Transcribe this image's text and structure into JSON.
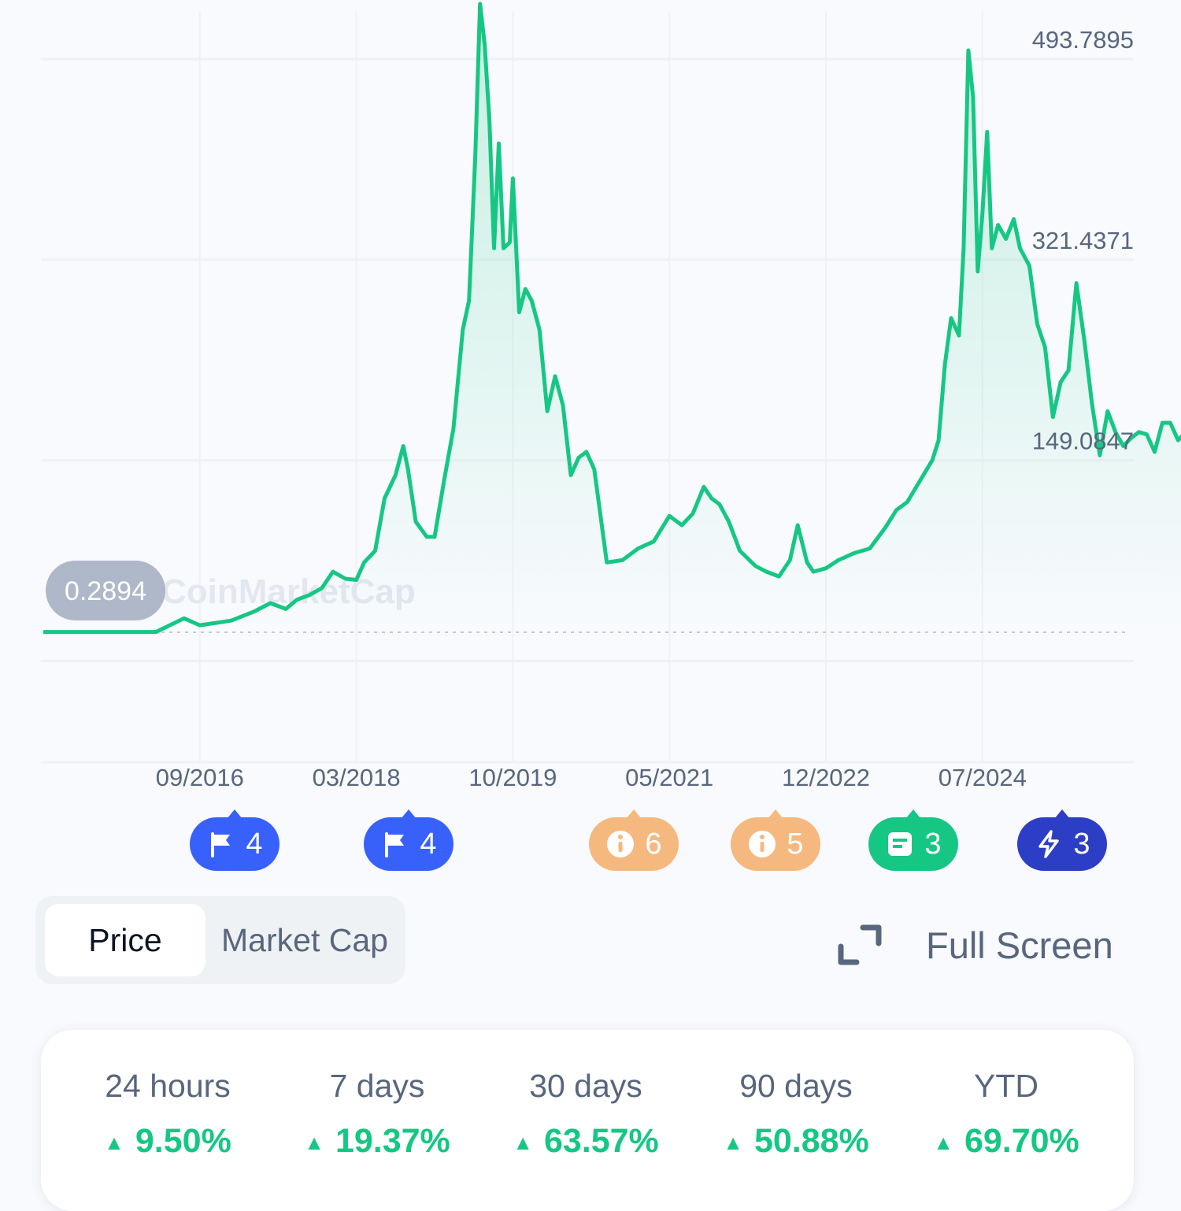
{
  "colors": {
    "line": "#16c784",
    "grid": "#eff2f5",
    "flag": "#3861fb",
    "info": "#f5b97f",
    "news": "#16c784",
    "bolt": "#2c3ec5"
  },
  "chart_data": {
    "type": "area",
    "watermark": "CoinMarketCap",
    "start_value_label": "0.2894",
    "y_labels": [
      "493.7895",
      "321.4371",
      "149.0847"
    ],
    "x_ticks": [
      "09/2016",
      "03/2018",
      "10/2019",
      "05/2021",
      "12/2022",
      "07/2024"
    ],
    "ylim": [
      -23.27,
      612
    ],
    "points": [
      [
        0,
        0.29
      ],
      [
        0.72,
        0.29
      ],
      [
        0.9,
        12
      ],
      [
        1.0,
        6
      ],
      [
        1.2,
        10
      ],
      [
        1.35,
        18
      ],
      [
        1.45,
        25
      ],
      [
        1.55,
        20
      ],
      [
        1.62,
        28
      ],
      [
        1.7,
        32
      ],
      [
        1.78,
        38
      ],
      [
        1.85,
        52
      ],
      [
        1.93,
        46
      ],
      [
        2.0,
        45
      ],
      [
        2.05,
        60
      ],
      [
        2.12,
        70
      ],
      [
        2.18,
        115
      ],
      [
        2.25,
        135
      ],
      [
        2.3,
        160
      ],
      [
        2.33,
        140
      ],
      [
        2.38,
        95
      ],
      [
        2.45,
        82
      ],
      [
        2.5,
        82
      ],
      [
        2.56,
        130
      ],
      [
        2.62,
        175
      ],
      [
        2.68,
        260
      ],
      [
        2.72,
        285
      ],
      [
        2.76,
        410
      ],
      [
        2.79,
        540
      ],
      [
        2.82,
        505
      ],
      [
        2.85,
        440
      ],
      [
        2.88,
        330
      ],
      [
        2.91,
        420
      ],
      [
        2.94,
        330
      ],
      [
        2.98,
        335
      ],
      [
        3.0,
        390
      ],
      [
        3.04,
        275
      ],
      [
        3.08,
        295
      ],
      [
        3.12,
        285
      ],
      [
        3.17,
        260
      ],
      [
        3.22,
        190
      ],
      [
        3.27,
        220
      ],
      [
        3.32,
        195
      ],
      [
        3.37,
        135
      ],
      [
        3.42,
        150
      ],
      [
        3.47,
        155
      ],
      [
        3.52,
        140
      ],
      [
        3.6,
        60
      ],
      [
        3.7,
        62
      ],
      [
        3.8,
        72
      ],
      [
        3.9,
        78
      ],
      [
        4.0,
        100
      ],
      [
        4.08,
        92
      ],
      [
        4.15,
        102
      ],
      [
        4.22,
        125
      ],
      [
        4.27,
        115
      ],
      [
        4.32,
        110
      ],
      [
        4.38,
        95
      ],
      [
        4.45,
        70
      ],
      [
        4.55,
        57
      ],
      [
        4.62,
        52
      ],
      [
        4.7,
        48
      ],
      [
        4.77,
        62
      ],
      [
        4.82,
        92
      ],
      [
        4.88,
        60
      ],
      [
        4.92,
        52
      ],
      [
        5.0,
        55
      ],
      [
        5.08,
        62
      ],
      [
        5.18,
        68
      ],
      [
        5.28,
        72
      ],
      [
        5.38,
        90
      ],
      [
        5.45,
        105
      ],
      [
        5.52,
        112
      ],
      [
        5.6,
        130
      ],
      [
        5.68,
        148
      ],
      [
        5.72,
        165
      ],
      [
        5.76,
        230
      ],
      [
        5.8,
        270
      ],
      [
        5.85,
        255
      ],
      [
        5.88,
        330
      ],
      [
        5.91,
        500
      ],
      [
        5.94,
        460
      ],
      [
        5.97,
        310
      ],
      [
        6.0,
        360
      ],
      [
        6.03,
        430
      ],
      [
        6.06,
        330
      ],
      [
        6.1,
        350
      ],
      [
        6.15,
        338
      ],
      [
        6.2,
        355
      ],
      [
        6.24,
        330
      ],
      [
        6.3,
        315
      ],
      [
        6.35,
        265
      ],
      [
        6.4,
        245
      ],
      [
        6.45,
        185
      ],
      [
        6.5,
        215
      ],
      [
        6.55,
        225
      ],
      [
        6.6,
        300
      ],
      [
        6.65,
        252
      ],
      [
        6.7,
        196
      ],
      [
        6.75,
        152
      ],
      [
        6.8,
        190
      ],
      [
        6.85,
        172
      ],
      [
        6.9,
        160
      ],
      [
        6.95,
        167
      ],
      [
        7.0,
        172
      ],
      [
        7.05,
        170
      ],
      [
        7.1,
        155
      ],
      [
        7.15,
        180
      ],
      [
        7.2,
        180
      ],
      [
        7.25,
        165
      ],
      [
        7.3,
        172
      ],
      [
        7.35,
        160
      ],
      [
        7.4,
        170
      ],
      [
        7.45,
        175
      ],
      [
        7.5,
        165
      ],
      [
        7.55,
        168
      ],
      [
        7.6,
        178
      ],
      [
        7.65,
        180
      ],
      [
        7.7,
        170
      ],
      [
        7.75,
        160
      ],
      [
        7.8,
        152
      ],
      [
        7.85,
        140
      ],
      [
        7.92,
        148
      ],
      [
        8.0,
        172
      ],
      [
        8.05,
        183
      ],
      [
        8.1,
        175
      ],
      [
        8.15,
        172
      ],
      [
        8.2,
        176
      ],
      [
        8.25,
        198
      ],
      [
        8.3,
        210
      ],
      [
        8.35,
        220
      ],
      [
        8.4,
        232
      ],
      [
        8.45,
        225
      ],
      [
        8.5,
        230
      ],
      [
        8.53,
        270
      ],
      [
        8.56,
        310
      ],
      [
        8.58,
        330
      ]
    ]
  },
  "badges": [
    {
      "icon": "flag-icon",
      "count": "4",
      "color": "#3861fb"
    },
    {
      "icon": "flag-icon",
      "count": "4",
      "color": "#3861fb"
    },
    {
      "icon": "info-icon",
      "count": "6",
      "color": "#f5b97f"
    },
    {
      "icon": "info-icon",
      "count": "5",
      "color": "#f5b97f"
    },
    {
      "icon": "news-icon",
      "count": "3",
      "color": "#16c784"
    },
    {
      "icon": "bolt-icon",
      "count": "3",
      "color": "#2c3ec5"
    }
  ],
  "toggle": {
    "price": "Price",
    "market_cap": "Market Cap"
  },
  "fullscreen_label": "Full Screen",
  "stats": [
    {
      "label": "24 hours",
      "value": "9.50%"
    },
    {
      "label": "7 days",
      "value": "19.37%"
    },
    {
      "label": "30 days",
      "value": "63.57%"
    },
    {
      "label": "90 days",
      "value": "50.88%"
    },
    {
      "label": "YTD",
      "value": "69.70%"
    }
  ]
}
